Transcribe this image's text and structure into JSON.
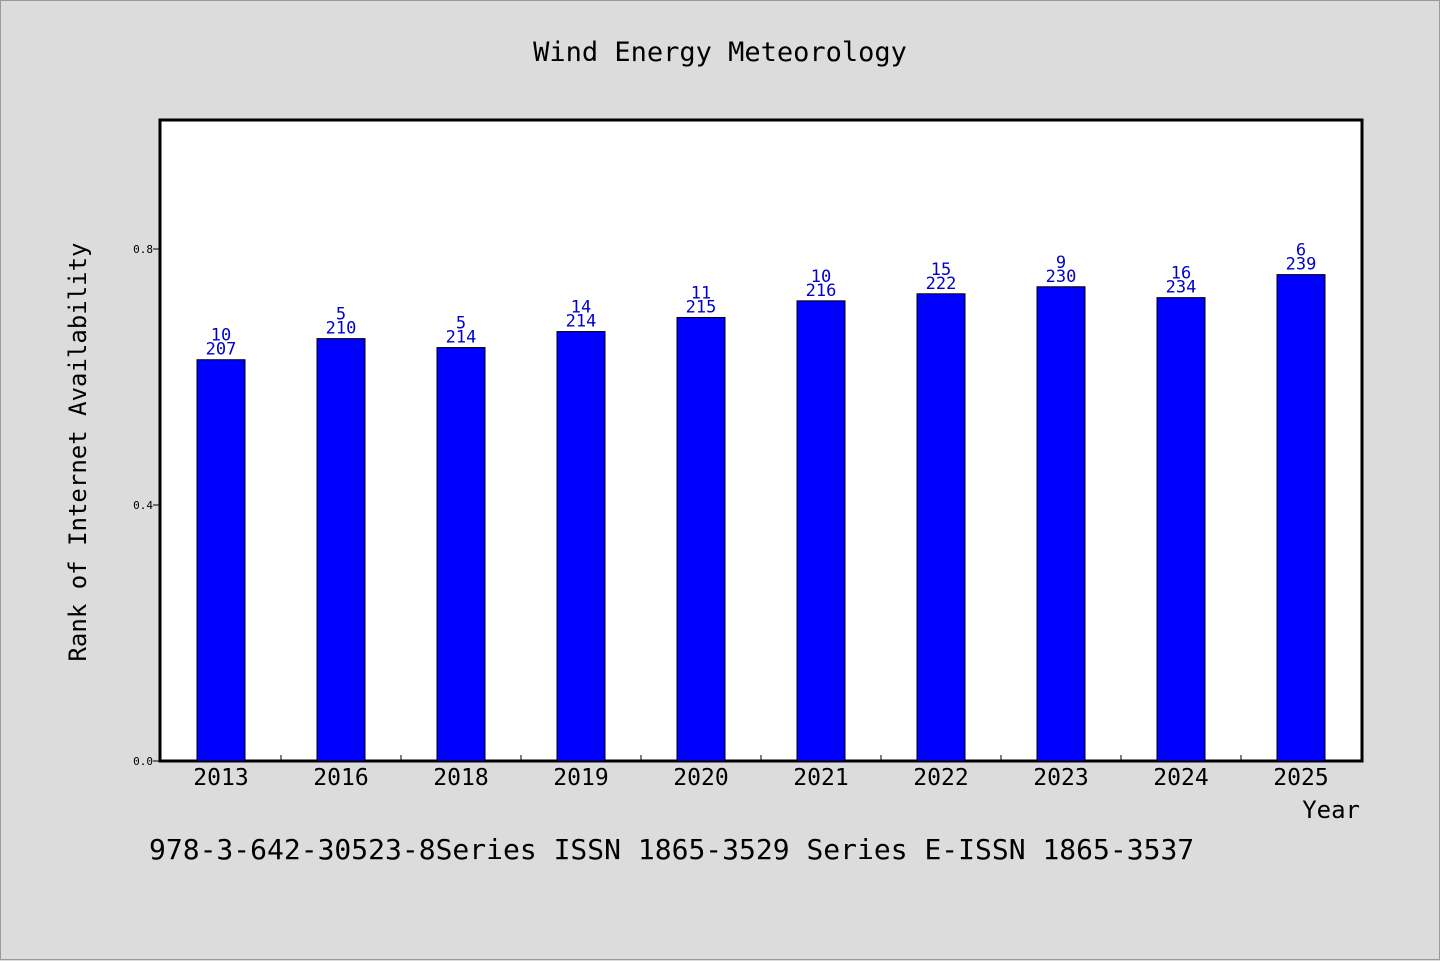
{
  "footer": {
    "text": "978-3-642-30523-8Series ISSN 1865-3529 Series E-ISSN 1865-3537"
  },
  "chart_data": {
    "type": "bar",
    "title": "Wind Energy Meteorology",
    "xlabel": "Year",
    "ylabel": "Rank of Internet Availability",
    "categories": [
      "2013",
      "2016",
      "2018",
      "2019",
      "2020",
      "2021",
      "2022",
      "2023",
      "2024",
      "2025"
    ],
    "series": [
      {
        "values": [
          0.627,
          0.66,
          0.646,
          0.671,
          0.693,
          0.719,
          0.73,
          0.741,
          0.724,
          0.76
        ],
        "labels_upper": [
          "10",
          "5",
          "5",
          "14",
          "11",
          "10",
          "15",
          "9",
          "16",
          "6"
        ],
        "labels_lower": [
          "207",
          "210",
          "214",
          "214",
          "215",
          "216",
          "222",
          "230",
          "234",
          "239"
        ]
      }
    ],
    "ylim": [
      0,
      1.0
    ],
    "yticks": [
      0.0,
      0.4,
      0.8
    ],
    "ytick_labels": [
      "0.0",
      "0.4",
      "0.8"
    ],
    "bar_color": "#0000ff",
    "label_color": "#0000cc",
    "grid": false,
    "legend": "none"
  }
}
